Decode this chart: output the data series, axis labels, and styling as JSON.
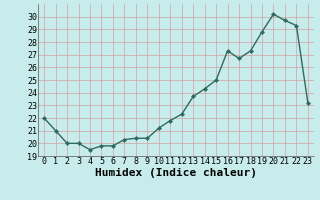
{
  "xlabel": "Humidex (Indice chaleur)",
  "x": [
    0,
    1,
    2,
    3,
    4,
    5,
    6,
    7,
    8,
    9,
    10,
    11,
    12,
    13,
    14,
    15,
    16,
    17,
    18,
    19,
    20,
    21,
    22,
    23
  ],
  "y": [
    22,
    21,
    20,
    20,
    19.5,
    19.8,
    19.8,
    20.3,
    20.4,
    20.4,
    21.2,
    21.8,
    22.3,
    23.7,
    24.3,
    25.0,
    27.3,
    26.7,
    27.3,
    28.8,
    30.2,
    29.7,
    29.3,
    23.2
  ],
  "line_color": "#2e6b5e",
  "marker": "D",
  "marker_size": 2,
  "linewidth": 1.0,
  "bg_color": "#c8ecec",
  "grid_color": "#d4a0a0",
  "tick_label_fontsize": 6,
  "xlabel_fontsize": 8,
  "ylim": [
    19,
    31
  ],
  "yticks": [
    19,
    20,
    21,
    22,
    23,
    24,
    25,
    26,
    27,
    28,
    29,
    30
  ],
  "xlim": [
    -0.5,
    23.5
  ]
}
